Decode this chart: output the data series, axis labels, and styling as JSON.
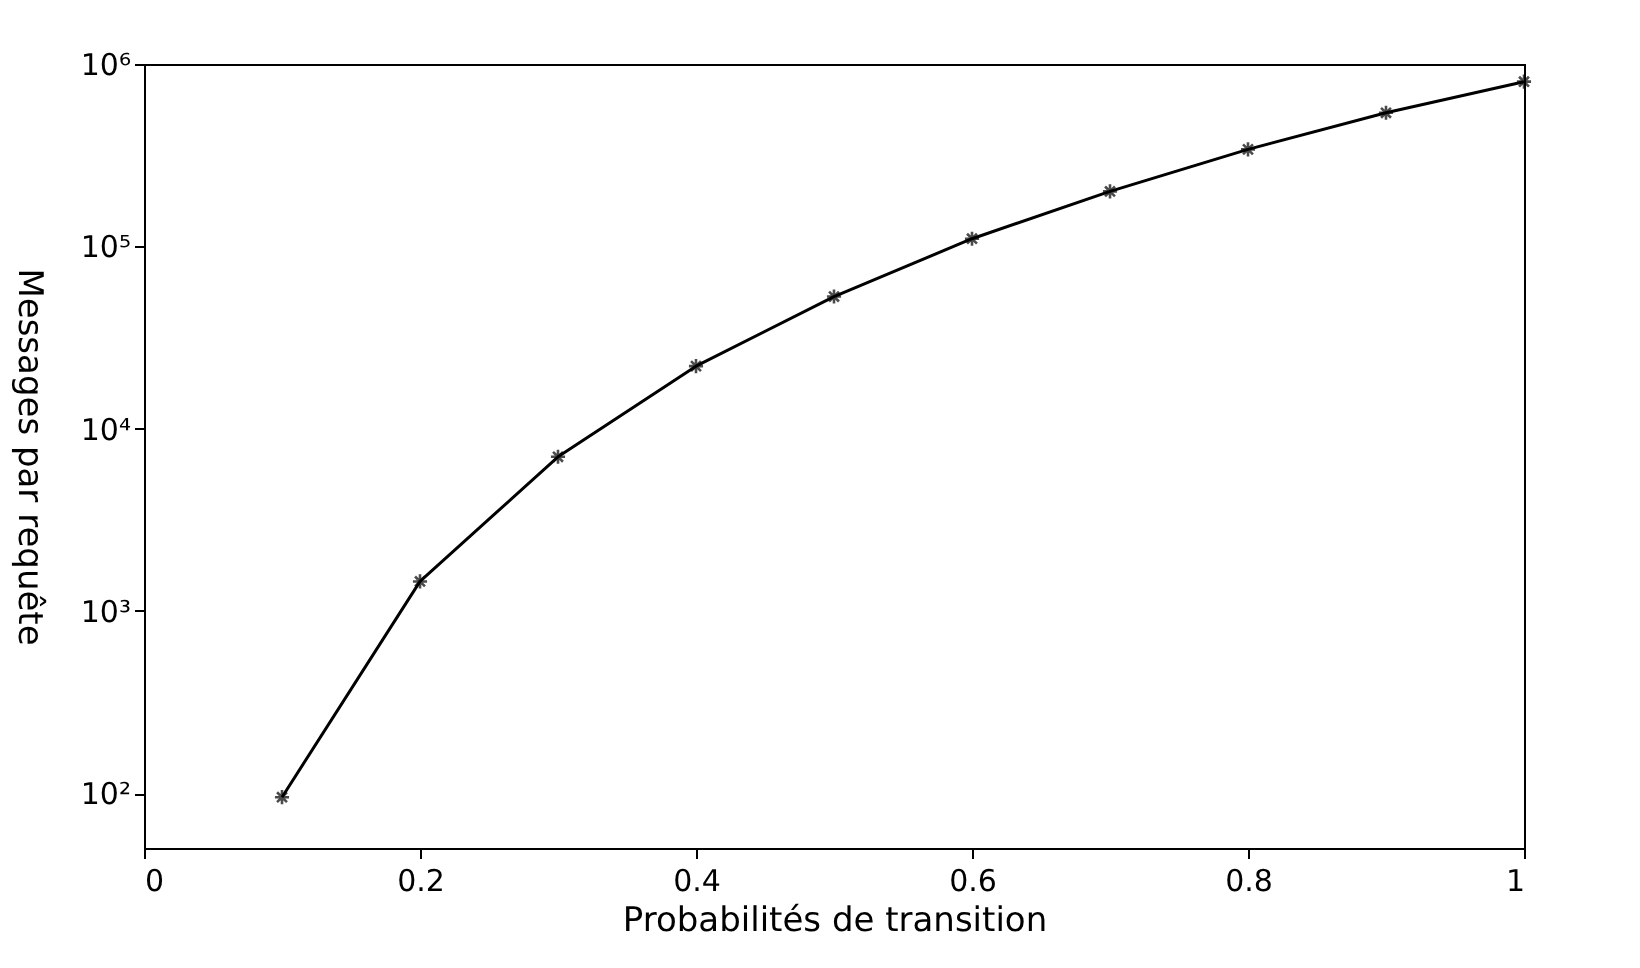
{
  "chart_data": {
    "type": "line",
    "xlabel": "Probabilités de transition",
    "ylabel": "Messages par requête",
    "x": [
      0.1,
      0.2,
      0.3,
      0.4,
      0.5,
      0.6,
      0.7,
      0.8,
      0.9,
      1.0
    ],
    "series": [
      {
        "color": "#000000",
        "values": [
          95,
          1450,
          7000,
          22000,
          53000,
          110000,
          200000,
          340000,
          540000,
          800000
        ]
      }
    ],
    "xlim": [
      0,
      1
    ],
    "xticks": [
      0,
      0.2,
      0.4,
      0.6,
      0.8,
      1
    ],
    "ylim": [
      50,
      1000000
    ],
    "yticks": [
      {
        "value": 100,
        "label": "10²"
      },
      {
        "value": 1000,
        "label": "10³"
      },
      {
        "value": 10000,
        "label": "10⁴"
      },
      {
        "value": 100000,
        "label": "10⁵"
      },
      {
        "value": 1000000,
        "label": "10⁶"
      }
    ],
    "log": "y",
    "grid": false,
    "marker": "cross",
    "line_style": "solid"
  }
}
